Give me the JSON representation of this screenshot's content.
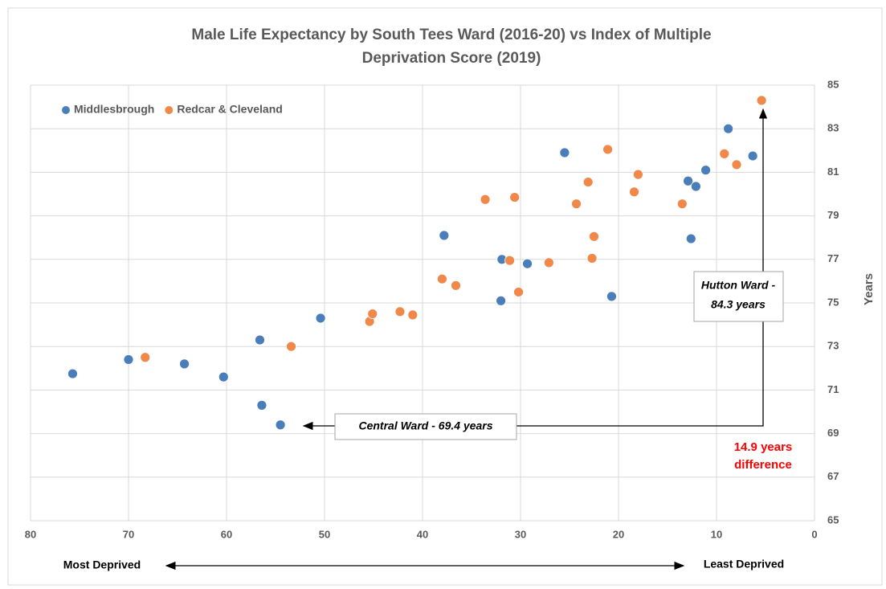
{
  "chart_data": {
    "type": "scatter",
    "title": [
      "Male Life Expectancy by South Tees Ward (2016-20) vs Index of Multiple",
      "Deprivation Score (2019)"
    ],
    "y_label": "Years",
    "x_label_left": "Most Deprived",
    "x_label_right": "Least Deprived",
    "xlim": [
      80,
      0
    ],
    "xticks": [
      80,
      70,
      60,
      50,
      40,
      30,
      20,
      10,
      0
    ],
    "ylim": [
      65,
      85
    ],
    "yticks": [
      65,
      67,
      69,
      71,
      73,
      75,
      77,
      79,
      81,
      83,
      85
    ],
    "grid": true,
    "legend": "top-left",
    "series": [
      {
        "name": "Middlesbrough",
        "color": "#4a7ebb",
        "x": [
          75.7,
          70.0,
          64.3,
          60.3,
          56.4,
          54.5,
          56.6,
          50.4,
          37.8,
          31.9,
          32.0,
          29.3,
          25.5,
          20.7,
          12.9,
          12.1,
          11.1,
          12.6,
          8.8,
          6.3
        ],
        "values": [
          71.75,
          72.4,
          72.2,
          71.6,
          70.3,
          69.4,
          73.3,
          74.3,
          78.1,
          77.0,
          75.1,
          76.8,
          81.9,
          75.3,
          80.6,
          80.35,
          81.1,
          77.95,
          83.0,
          81.75
        ]
      },
      {
        "name": "Redcar & Cleveland",
        "color": "#f0884a",
        "x": [
          68.3,
          53.4,
          45.4,
          45.1,
          42.3,
          41.0,
          38.0,
          36.6,
          33.6,
          31.1,
          30.6,
          30.2,
          27.1,
          24.3,
          23.1,
          22.7,
          22.5,
          21.1,
          18.4,
          18.0,
          13.5,
          9.2,
          7.95,
          5.4
        ],
        "values": [
          72.5,
          73.0,
          74.15,
          74.5,
          74.6,
          74.45,
          76.1,
          75.8,
          79.75,
          76.95,
          79.85,
          75.5,
          76.85,
          79.55,
          80.55,
          77.05,
          78.05,
          82.05,
          80.1,
          80.9,
          79.55,
          81.85,
          81.35,
          84.3
        ]
      }
    ],
    "annotations": {
      "hutton": [
        "Hutton Ward -",
        "84.3 years"
      ],
      "central": "Central Ward - 69.4 years",
      "difference": [
        "14.9 years",
        "difference"
      ]
    }
  }
}
